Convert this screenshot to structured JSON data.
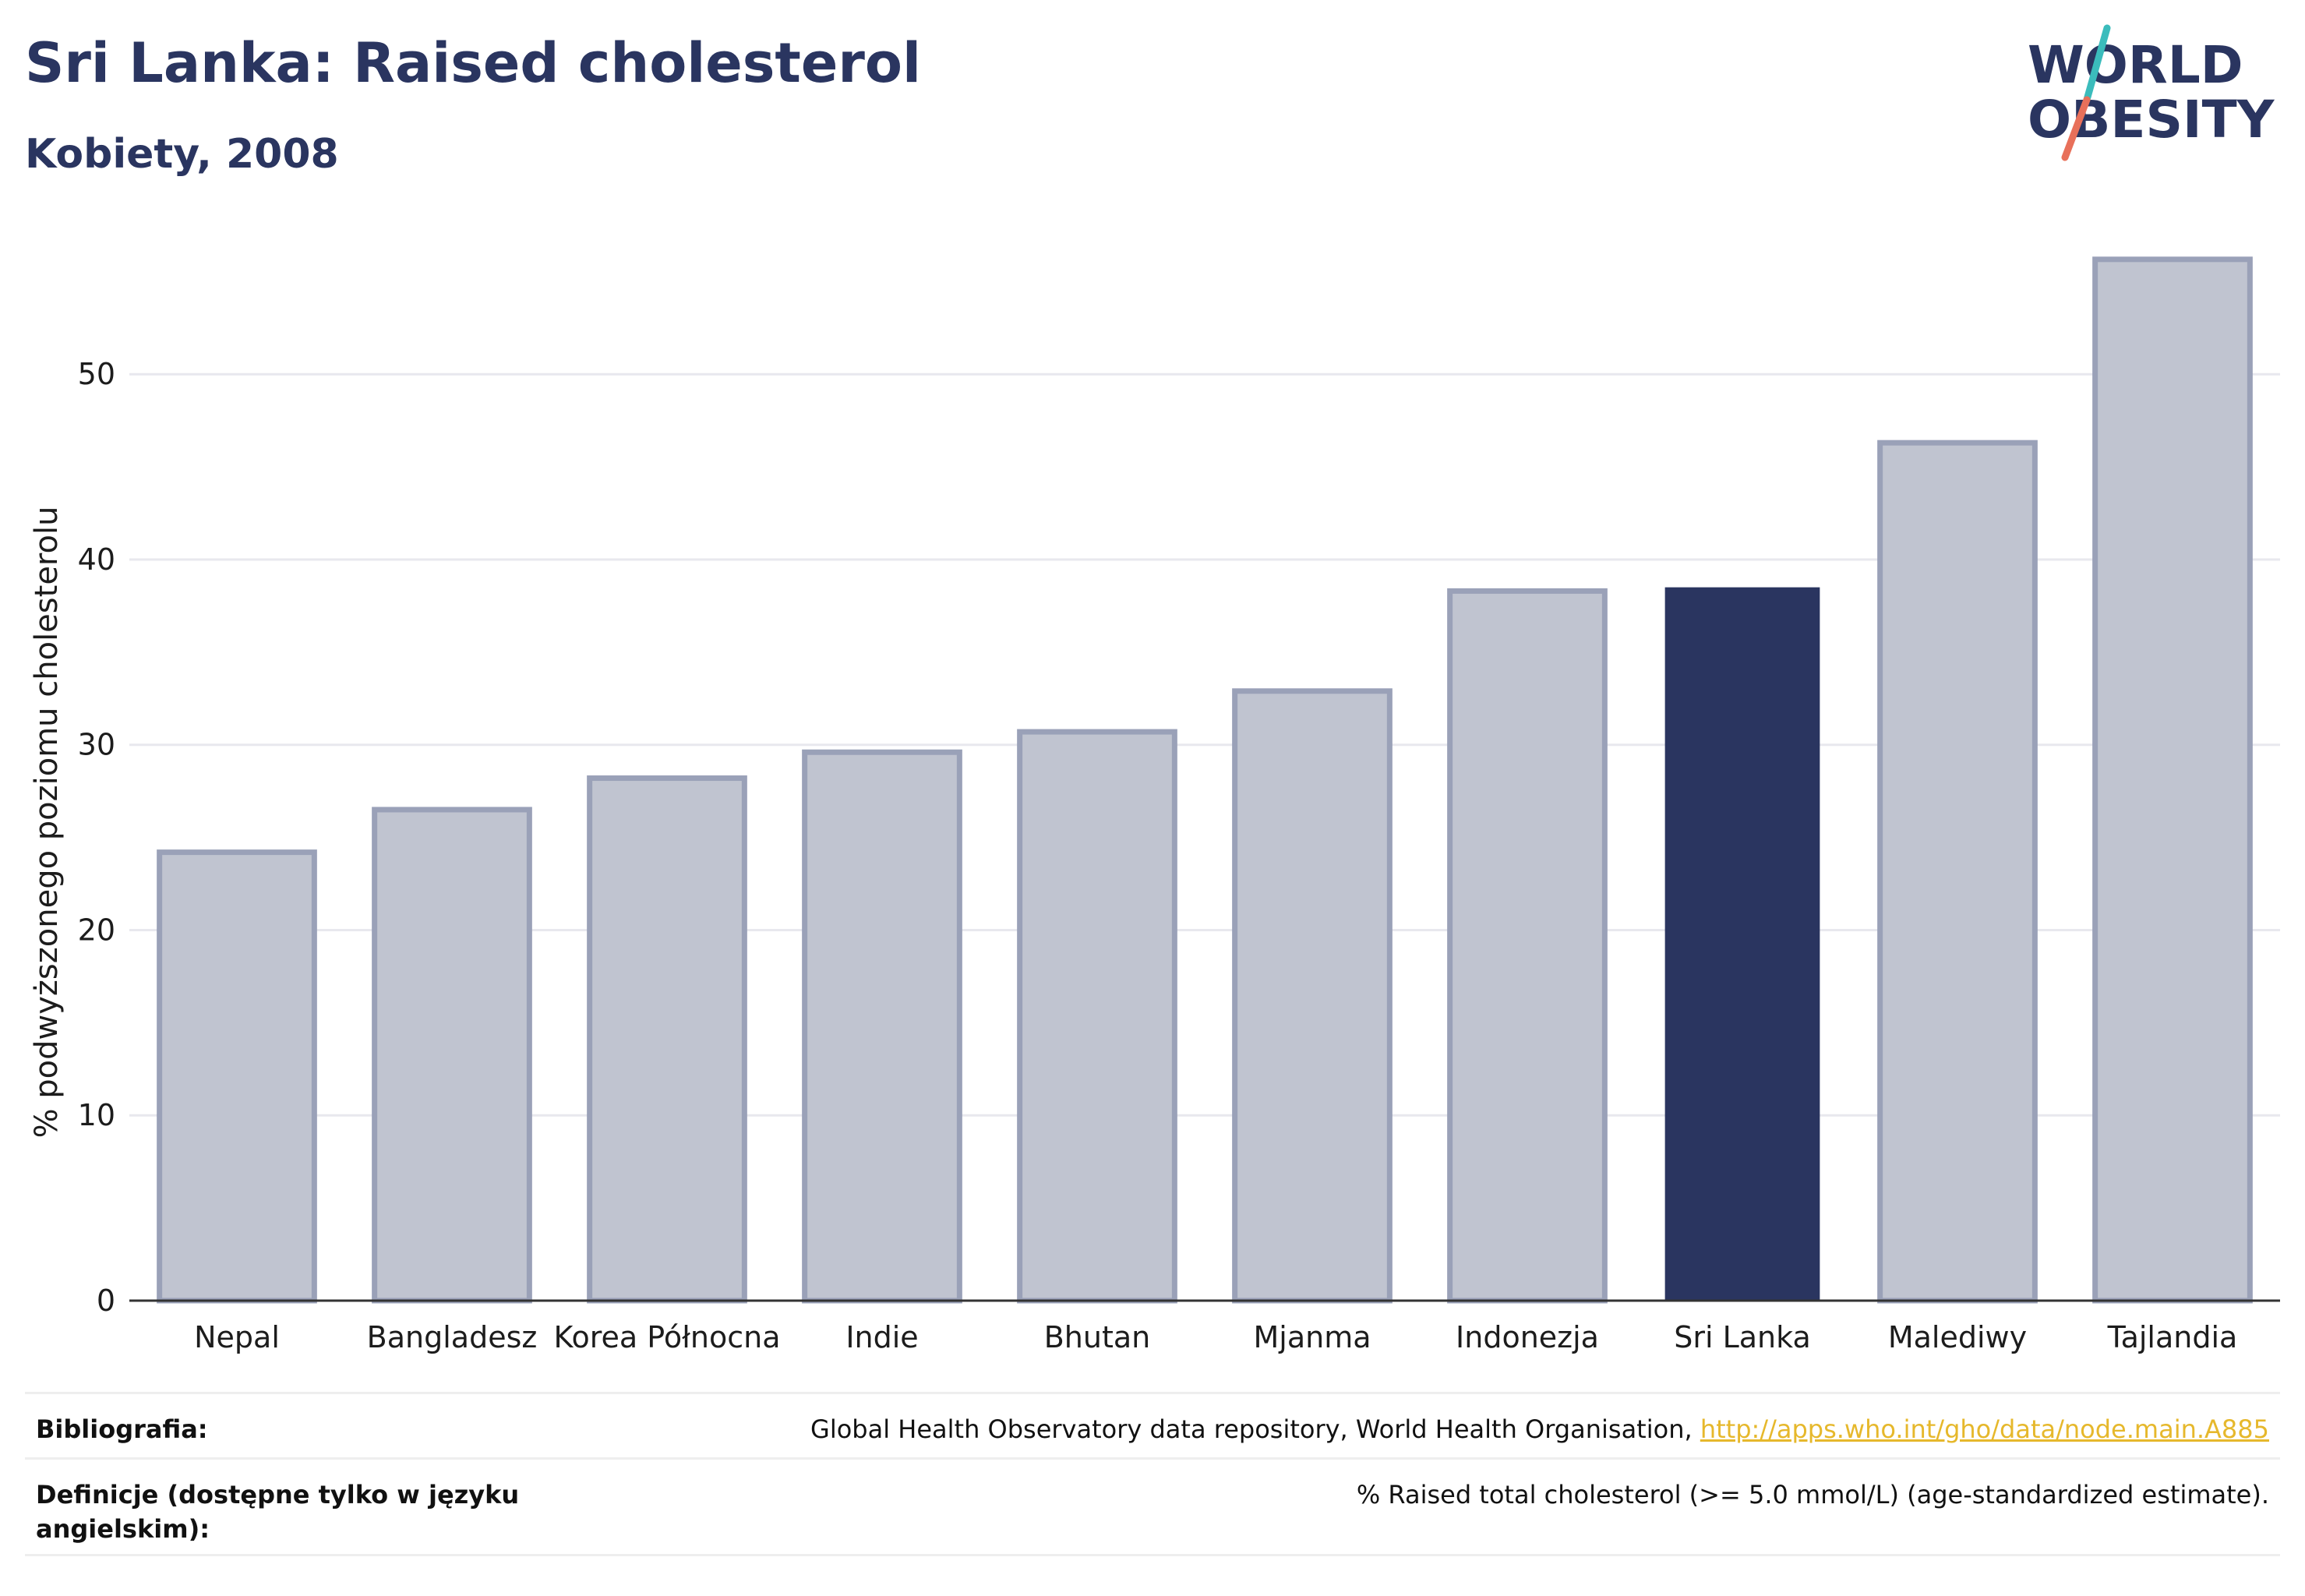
{
  "title": "Sri Lanka: Raised cholesterol",
  "subtitle": "Kobiety, 2008",
  "logo": {
    "line1": "WORLD",
    "line2": "OBESITY"
  },
  "colors": {
    "highlight": "#2a3560",
    "bar": "#c0c4d0",
    "bar_border": "#9aa1b8",
    "logo_teal": "#3bbcbc",
    "logo_coral": "#e8705a",
    "link": "#e6b82c"
  },
  "chart_data": {
    "type": "bar",
    "title": "Sri Lanka: Raised cholesterol",
    "subtitle": "Kobiety, 2008",
    "xlabel": "",
    "ylabel": "% podwyższonego poziomu cholesterolu",
    "ylim": [
      0,
      58
    ],
    "yticks": [
      0,
      10,
      20,
      30,
      40,
      50
    ],
    "grid": true,
    "highlight_category": "Sri Lanka",
    "categories": [
      "Nepal",
      "Bangladesz",
      "Korea Północna",
      "Indie",
      "Bhutan",
      "Mjanma",
      "Indonezja",
      "Sri Lanka",
      "Malediwy",
      "Tajlandia"
    ],
    "values": [
      24.2,
      26.5,
      28.2,
      29.6,
      30.7,
      32.9,
      38.3,
      38.5,
      46.3,
      56.2
    ]
  },
  "footer": {
    "source_label": "Bibliografia:",
    "source_text": "Global Health Observatory data repository, World Health Organisation, ",
    "source_link": "http://apps.who.int/gho/data/node.main.A885",
    "definition_label_line1": "Definicje (dostępne tylko w języku",
    "definition_label_line2": "angielskim):",
    "definition_text": "% Raised total cholesterol (>= 5.0 mmol/L) (age-standardized estimate)."
  }
}
